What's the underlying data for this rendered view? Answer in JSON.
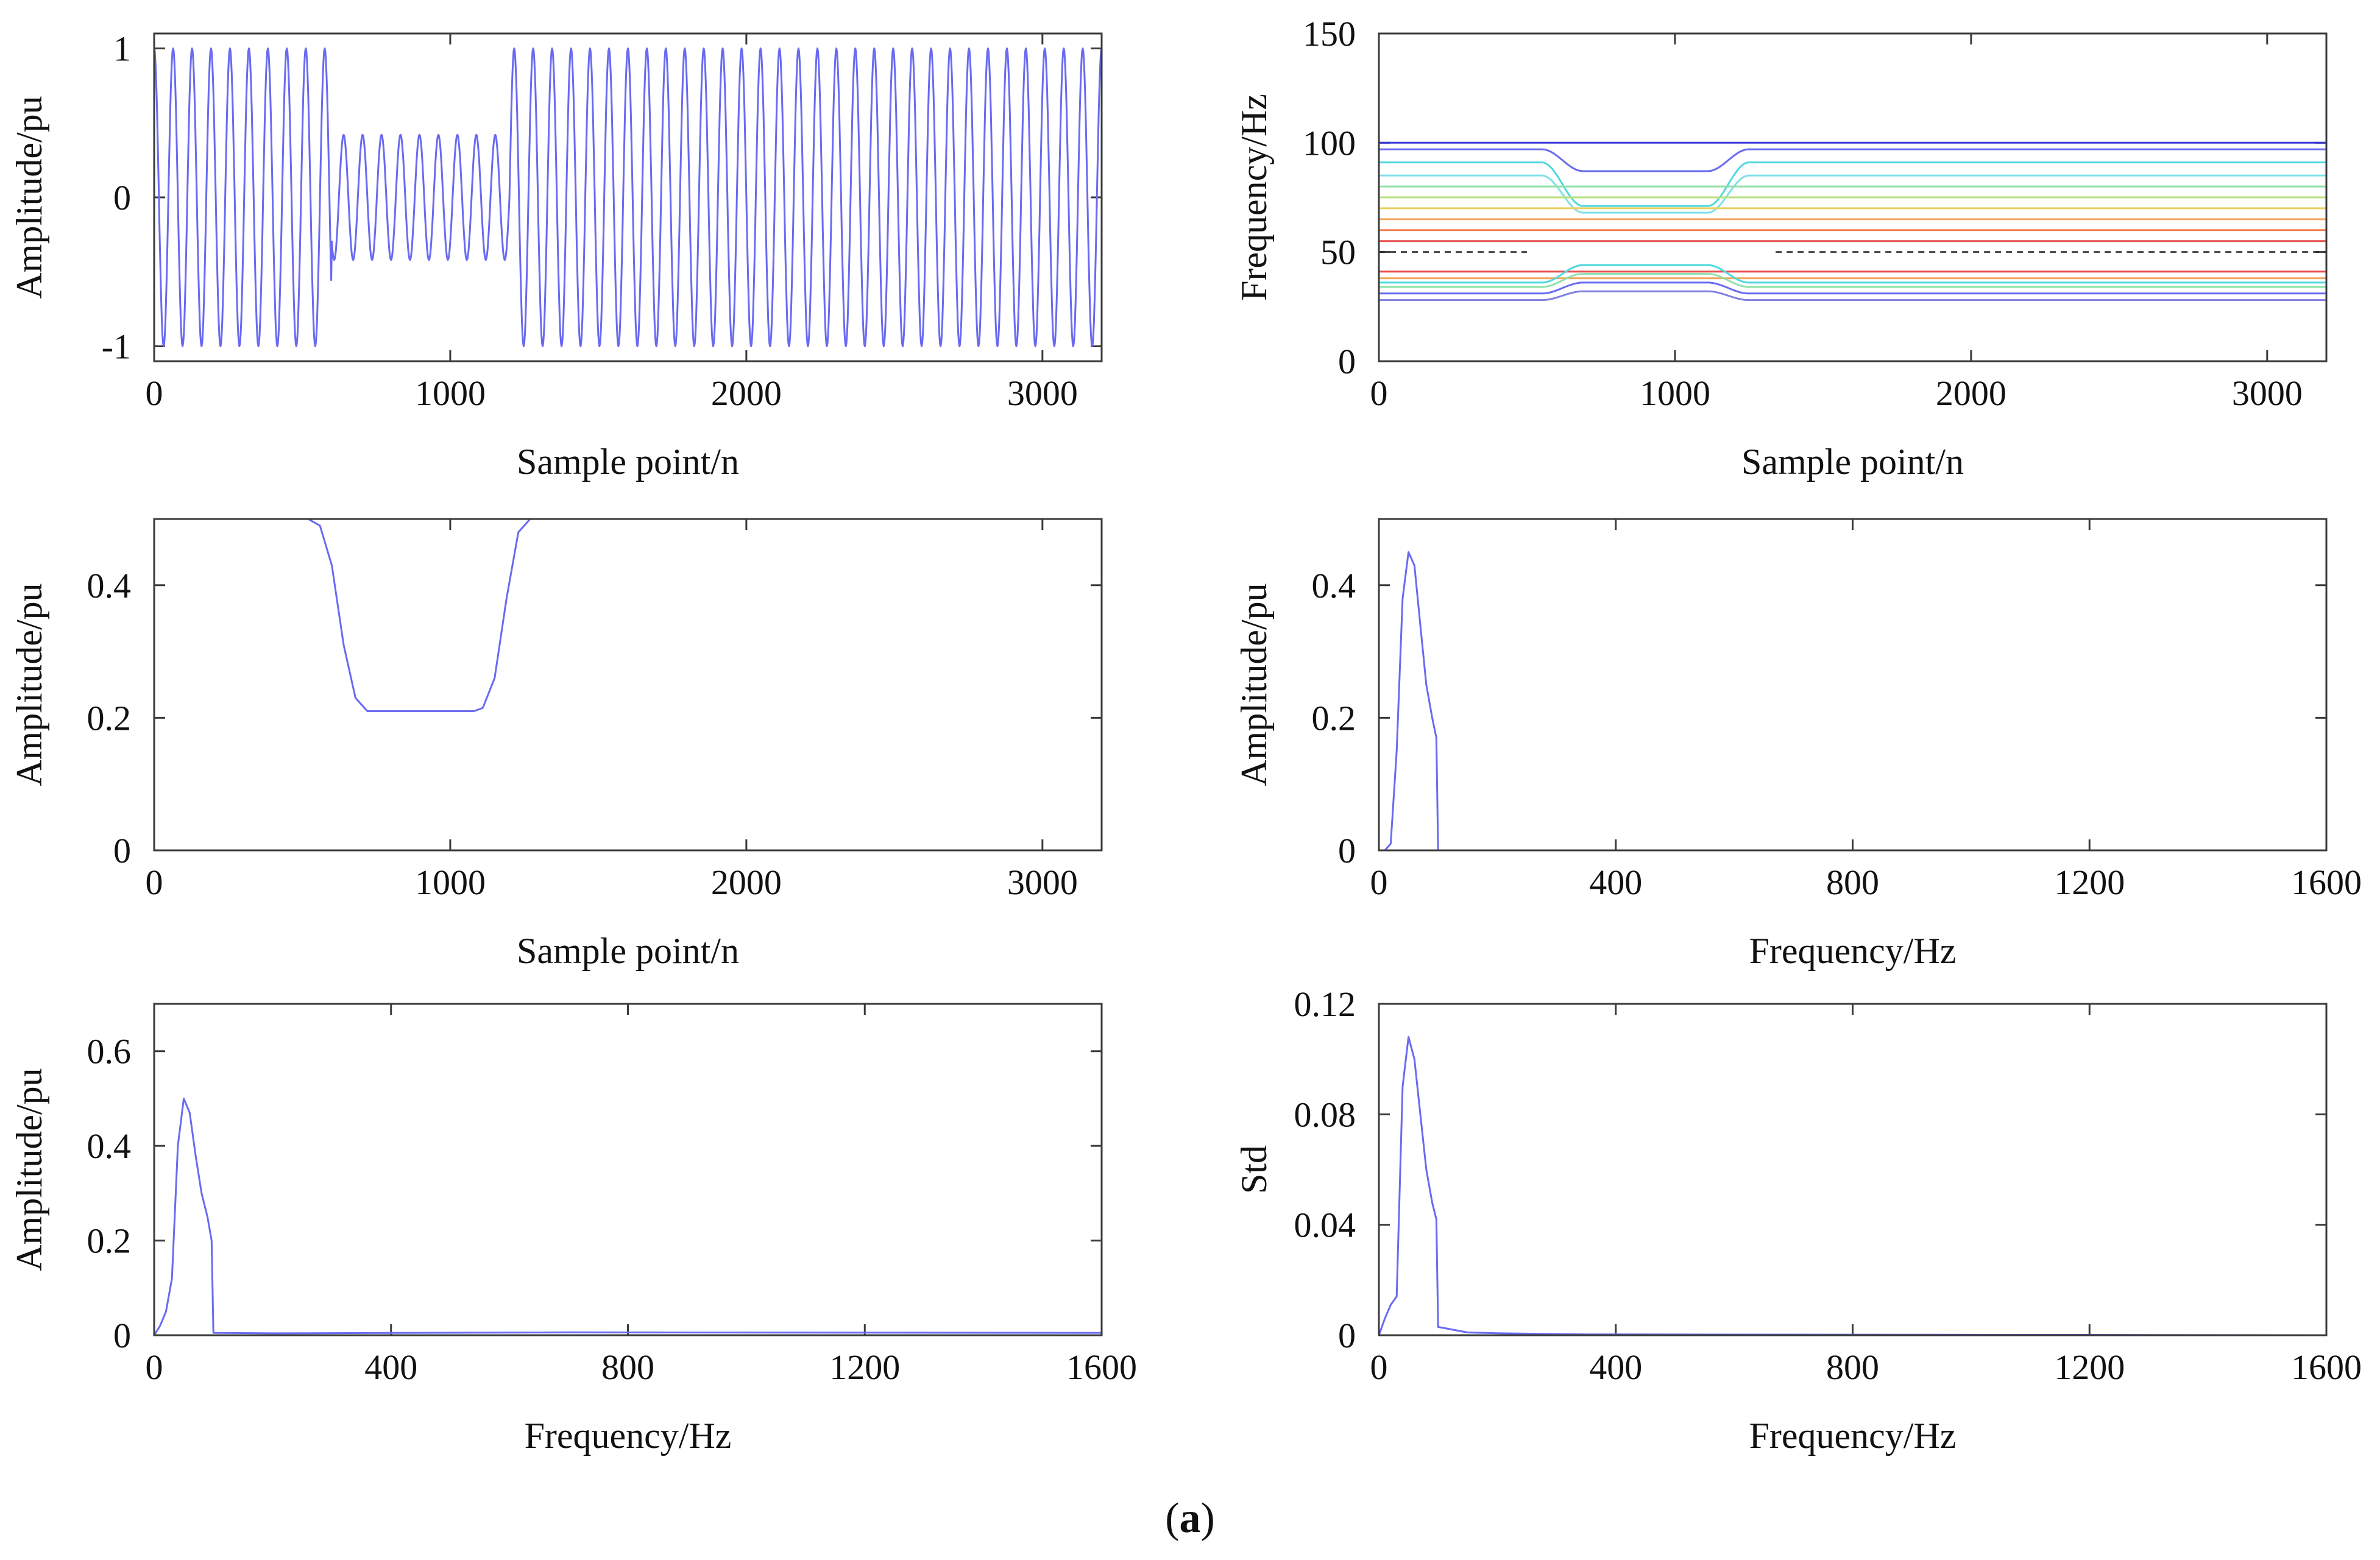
{
  "figure_label": {
    "open": "(",
    "letter": "a",
    "close": ")"
  },
  "chart_data": [
    {
      "id": "p1",
      "type": "line",
      "title": "",
      "xlabel": "Sample point/n",
      "ylabel": "Amplitude/pu",
      "xlim": [
        0,
        3200
      ],
      "ylim": [
        -1.1,
        1.1
      ],
      "xticks": [
        0,
        1000,
        2000,
        3000
      ],
      "yticks": [
        -1,
        0,
        1
      ],
      "ytick_labels": [
        "-1",
        "0",
        "1"
      ],
      "signal": {
        "form": "sinusoid",
        "period_samples": 64,
        "segments": [
          {
            "x": [
              0,
              600
            ],
            "amplitude": 1.0
          },
          {
            "x": [
              600,
              1200
            ],
            "amplitude": 0.42
          },
          {
            "x": [
              1200,
              3200
            ],
            "amplitude": 1.0
          }
        ]
      },
      "series_color": "#6a6af2"
    },
    {
      "id": "p2",
      "type": "line",
      "title": "",
      "xlabel": "Sample point/n",
      "ylabel": "Frequency/Hz",
      "xlim": [
        0,
        3200
      ],
      "ylim": [
        0,
        150
      ],
      "xticks": [
        0,
        1000,
        2000,
        3000
      ],
      "yticks": [
        0,
        50,
        100,
        150
      ],
      "ytick_labels": [
        "0",
        "50",
        "100",
        "150"
      ],
      "contour_levels": [
        {
          "outer": 100,
          "inner": 100,
          "color": "#3a3ad8"
        },
        {
          "outer": 97,
          "inner": 87,
          "color": "#6a6af2"
        },
        {
          "outer": 91,
          "inner": 71,
          "color": "#4fd8e0"
        },
        {
          "outer": 85,
          "inner": 68,
          "color": "#7fe0e8"
        },
        {
          "outer": 80,
          "inner": 80,
          "color": "#90e0a8"
        },
        {
          "outer": 75,
          "inner": 75,
          "color": "#b8e080"
        },
        {
          "outer": 70,
          "inner": 70,
          "color": "#e8d060"
        },
        {
          "outer": 65,
          "inner": 65,
          "color": "#f0a860"
        },
        {
          "outer": 60,
          "inner": 60,
          "color": "#f08050"
        },
        {
          "outer": 55,
          "inner": 55,
          "color": "#e85050"
        },
        {
          "outer": 41,
          "inner": 41,
          "color": "#e85050"
        },
        {
          "outer": 38,
          "inner": 38,
          "color": "#f0a860"
        },
        {
          "outer": 36,
          "inner": 44,
          "color": "#4fd8e0"
        },
        {
          "outer": 34,
          "inner": 40,
          "color": "#90e0a8"
        },
        {
          "outer": 31,
          "inner": 36,
          "color": "#6a6af2"
        },
        {
          "outer": 28,
          "inner": 32,
          "color": "#8080e0"
        }
      ],
      "dashed_line": {
        "y": 50,
        "segments": [
          [
            0,
            500
          ],
          [
            1340,
            3200
          ]
        ],
        "color": "#222222"
      }
    },
    {
      "id": "p3",
      "type": "line",
      "title": "",
      "xlabel": "Sample point/n",
      "ylabel": "Amplitude/pu",
      "xlim": [
        0,
        3200
      ],
      "ylim": [
        0,
        0.5
      ],
      "xticks": [
        0,
        1000,
        2000,
        3000
      ],
      "yticks": [
        0,
        0.2,
        0.4
      ],
      "ytick_labels": [
        "0",
        "0.2",
        "0.4"
      ],
      "series": [
        {
          "x": [
            0,
            520,
            560,
            600,
            640,
            680,
            720,
            1080,
            1110,
            1150,
            1190,
            1230,
            1270,
            3200
          ],
          "y": [
            0.5,
            0.5,
            0.49,
            0.43,
            0.31,
            0.23,
            0.21,
            0.21,
            0.215,
            0.26,
            0.38,
            0.48,
            0.5,
            0.5
          ]
        }
      ],
      "series_color": "#6a6af2"
    },
    {
      "id": "p4",
      "type": "line",
      "title": "",
      "xlabel": "Frequency/Hz",
      "ylabel": "Amplitude/pu",
      "xlim": [
        0,
        1600
      ],
      "ylim": [
        0,
        0.5
      ],
      "xticks": [
        0,
        400,
        800,
        1200,
        1600
      ],
      "yticks": [
        0,
        0.2,
        0.4
      ],
      "ytick_labels": [
        "0",
        "0.2",
        "0.4"
      ],
      "series": [
        {
          "x": [
            0,
            10,
            20,
            30,
            40,
            50,
            60,
            70,
            80,
            90,
            97,
            100,
            200,
            1600
          ],
          "y": [
            0,
            0,
            0.01,
            0.15,
            0.38,
            0.45,
            0.43,
            0.34,
            0.25,
            0.2,
            0.17,
            0.0,
            0.0,
            0.0
          ]
        }
      ],
      "series_color": "#6a6af2"
    },
    {
      "id": "p5",
      "type": "line",
      "title": "",
      "xlabel": "Frequency/Hz",
      "ylabel": "Amplitude/pu",
      "xlim": [
        0,
        1600
      ],
      "ylim": [
        0,
        0.7
      ],
      "xticks": [
        0,
        400,
        800,
        1200,
        1600
      ],
      "yticks": [
        0,
        0.2,
        0.4,
        0.6
      ],
      "ytick_labels": [
        "0",
        "0.2",
        "0.4",
        "0.6"
      ],
      "series": [
        {
          "x": [
            0,
            10,
            20,
            30,
            40,
            50,
            60,
            70,
            80,
            90,
            97,
            100,
            200,
            700,
            1600
          ],
          "y": [
            0,
            0.02,
            0.05,
            0.12,
            0.4,
            0.5,
            0.47,
            0.38,
            0.3,
            0.25,
            0.2,
            0.005,
            0.004,
            0.006,
            0.005
          ]
        }
      ],
      "series_color": "#6a6af2"
    },
    {
      "id": "p6",
      "type": "line",
      "title": "",
      "xlabel": "Frequency/Hz",
      "ylabel": "Std",
      "xlim": [
        0,
        1600
      ],
      "ylim": [
        0,
        0.12
      ],
      "xticks": [
        0,
        400,
        800,
        1200,
        1600
      ],
      "yticks": [
        0,
        0.04,
        0.08,
        0.12
      ],
      "ytick_labels": [
        "0",
        "0.04",
        "0.08",
        "0.12"
      ],
      "series": [
        {
          "x": [
            0,
            10,
            20,
            30,
            40,
            50,
            60,
            70,
            80,
            90,
            97,
            100,
            150,
            200,
            350,
            1600
          ],
          "y": [
            0,
            0.006,
            0.011,
            0.014,
            0.09,
            0.108,
            0.1,
            0.08,
            0.06,
            0.048,
            0.042,
            0.003,
            0.001,
            0.0007,
            0.0003,
            0.0
          ]
        }
      ],
      "series_color": "#6a6af2"
    }
  ]
}
